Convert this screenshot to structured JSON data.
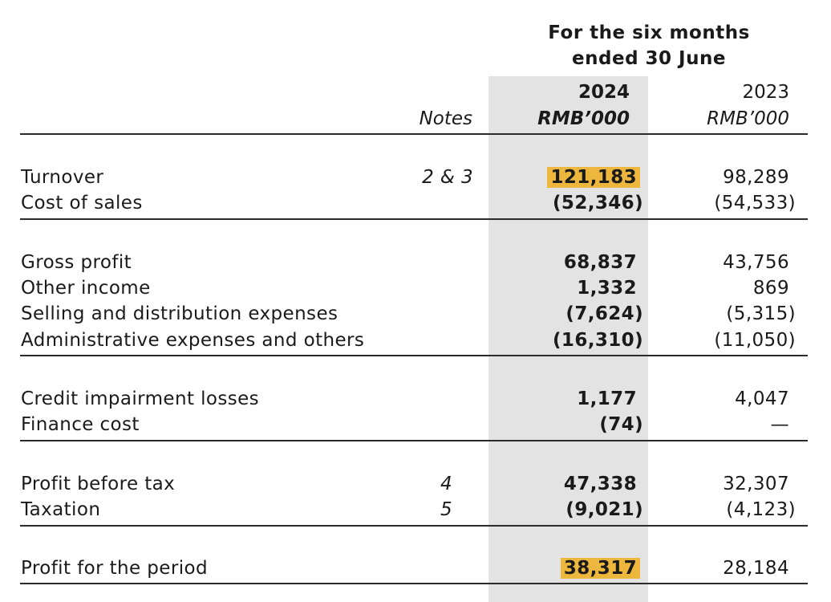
{
  "header": {
    "period_line1": "For the six months",
    "period_line2": "ended 30 June",
    "notes_label": "Notes",
    "year_current": "2024",
    "year_prior": "2023",
    "unit_current": "RMB’000",
    "unit_prior": "RMB’000"
  },
  "colors": {
    "highlight": "#edb73d",
    "current_column_shade": "#e3e3e3"
  },
  "rows": {
    "turnover": {
      "label": "Turnover",
      "note": "2 & 3",
      "current": "121,183",
      "prior": "98,289"
    },
    "cost_of_sales": {
      "label": "Cost of sales",
      "current": "(52,346)",
      "prior": "(54,533)"
    },
    "gross_profit": {
      "label": "Gross profit",
      "current": "68,837",
      "prior": "43,756"
    },
    "other_income": {
      "label": "Other income",
      "current": "1,332",
      "prior": "869"
    },
    "selling": {
      "label": "Selling and distribution expenses",
      "current": "(7,624)",
      "prior": "(5,315)"
    },
    "admin": {
      "label": "Administrative expenses and others",
      "current": "(16,310)",
      "prior": "(11,050)"
    },
    "credit": {
      "label": "Credit impairment losses",
      "current": "1,177",
      "prior": "4,047"
    },
    "finance": {
      "label": "Finance cost",
      "current": "(74)",
      "prior": "—"
    },
    "pbt": {
      "label": "Profit before tax",
      "note": "4",
      "current": "47,338",
      "prior": "32,307"
    },
    "tax": {
      "label": "Taxation",
      "note": "5",
      "current": "(9,021)",
      "prior": "(4,123)"
    },
    "profit": {
      "label": "Profit for the period",
      "current": "38,317",
      "prior": "28,184"
    }
  }
}
